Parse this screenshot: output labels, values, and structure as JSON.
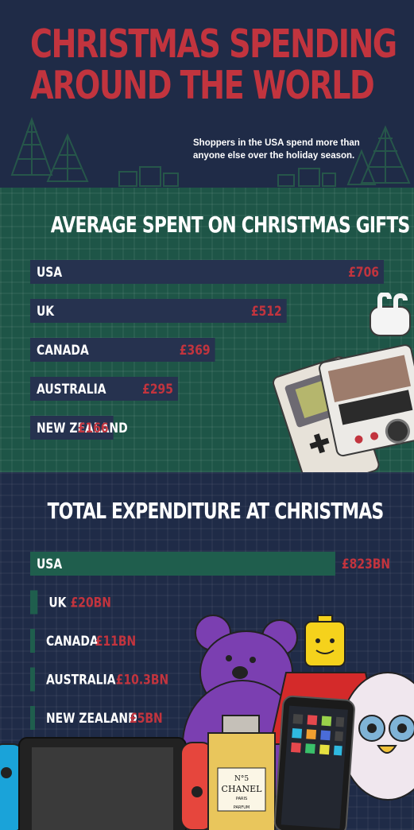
{
  "header": {
    "title_line1": "CHRISTMAS SPENDING",
    "title_line2": "AROUND THE WORLD",
    "subtitle": "Shoppers in the USA spend more than anyone else over the holiday season."
  },
  "colors": {
    "title_red": "#c2343e",
    "navy": "#1f2b47",
    "bar_navy": "#26324f",
    "bar_green": "#1f5e4d",
    "section_green": "#1e5547",
    "value_red": "#c2343e"
  },
  "chart_data": [
    {
      "type": "bar",
      "orientation": "horizontal",
      "title": "AVERAGE SPENT ON CHRISTMAS GIFTS",
      "categories": [
        "USA",
        "UK",
        "CANADA",
        "AUSTRALIA",
        "NEW ZEALAND"
      ],
      "values": [
        706,
        512,
        369,
        295,
        166
      ],
      "value_labels": [
        "£706",
        "£512",
        "£369",
        "£295",
        "£166"
      ],
      "unit": "£",
      "xlim": [
        0,
        706
      ]
    },
    {
      "type": "bar",
      "orientation": "horizontal",
      "title": "TOTAL EXPENDITURE AT CHRISTMAS",
      "categories": [
        "USA",
        "UK",
        "CANADA",
        "AUSTRALIA",
        "NEW ZEALAND"
      ],
      "values": [
        823,
        20,
        11,
        10.3,
        5
      ],
      "value_labels": [
        "£823BN",
        "£20BN",
        "£11BN",
        "£10.3BN",
        "£5BN"
      ],
      "unit": "£ billion",
      "xlim": [
        0,
        823
      ]
    }
  ],
  "illustrations": {
    "section1": [
      "game-boy-icon",
      "airpods-icon",
      "polaroid-camera-icon"
    ],
    "section2": [
      "purple-teddy-bear-icon",
      "lego-figure-icon",
      "furby-icon",
      "nintendo-switch-icon",
      "perfume-bottle-icon",
      "smartphone-icon"
    ],
    "perfume_brand": "CHANEL",
    "perfume_number": "N°5",
    "perfume_sub1": "PARIS",
    "perfume_sub2": "PARFUM"
  }
}
